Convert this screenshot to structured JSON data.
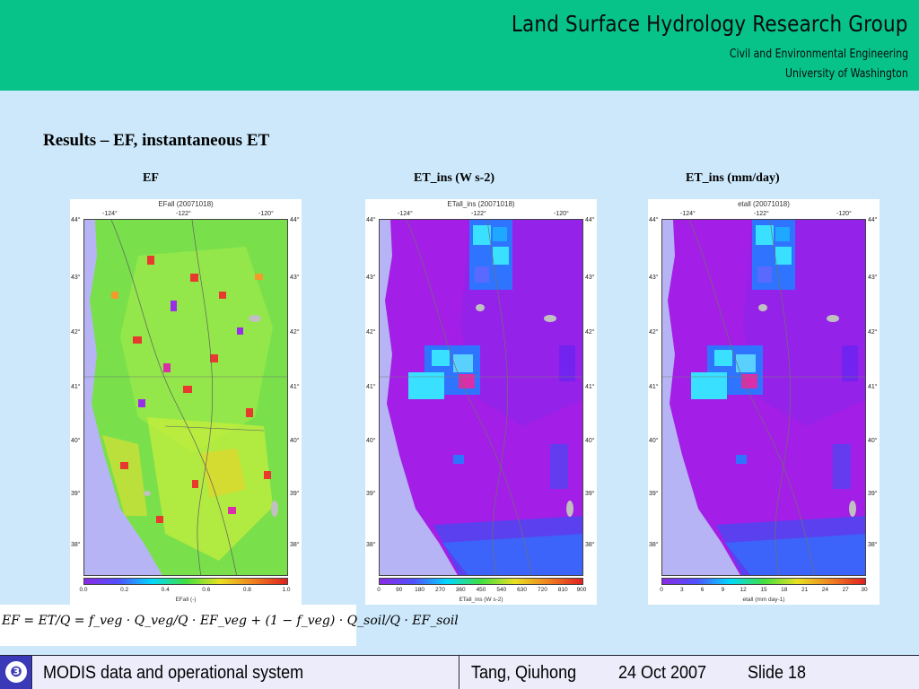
{
  "header": {
    "title": "Land Surface Hydrology Research Group",
    "department": "Civil and Environmental Engineering",
    "university": "University of Washington",
    "background_color": "#07c38a"
  },
  "slide": {
    "heading": "Results – EF, instantaneous ET",
    "background_color": "#cce8fa"
  },
  "maps": [
    {
      "label": "EF",
      "panel_title": "EFall (20071018)",
      "colorbar_label": "EFall (-)",
      "colorbar_ticks": [
        "0.0",
        "0.2",
        "0.4",
        "0.6",
        "0.8",
        "1.0"
      ],
      "colormap": "rainbow-purple-to-red",
      "dominant_colors": [
        "#6fe05a",
        "#c8f03a",
        "#f2d024",
        "#e8392e"
      ]
    },
    {
      "label": "ET_ins (W s-2)",
      "panel_title": "ETall_ins (20071018)",
      "colorbar_label": "ETall_ins (W s-2)",
      "colorbar_ticks": [
        "0",
        "90",
        "180",
        "270",
        "360",
        "450",
        "540",
        "630",
        "720",
        "810",
        "900"
      ],
      "colormap": "rainbow-purple-to-red",
      "dominant_colors": [
        "#a31ee6",
        "#6a24f0",
        "#2f74ff",
        "#39e0ff"
      ]
    },
    {
      "label": "ET_ins (mm/day)",
      "panel_title": "etall (20071018)",
      "colorbar_label": "etall (mm day-1)",
      "colorbar_ticks": [
        "0",
        "3",
        "6",
        "9",
        "12",
        "15",
        "18",
        "21",
        "24",
        "27",
        "30"
      ],
      "colormap": "rainbow-purple-to-red",
      "dominant_colors": [
        "#a31ee6",
        "#6a24f0",
        "#2f74ff",
        "#39e0ff"
      ]
    }
  ],
  "axes": {
    "longitudes": [
      "-124°",
      "-122°",
      "-120°"
    ],
    "latitudes": [
      "44°",
      "43°",
      "42°",
      "41°",
      "40°",
      "39°",
      "38°"
    ]
  },
  "formula": {
    "text": "EF = ET/Q = f_veg · Q_veg/Q · EF_veg + (1 − f_veg) · Q_soil/Q · EF_soil"
  },
  "footer": {
    "bullet": "❸",
    "title": "MODIS data and operational system",
    "author": "Tang, Qiuhong",
    "date": "24 Oct 2007",
    "slide_number": "Slide 18",
    "bullet_color": "#3a3ab8",
    "panel_color": "#ececfb"
  }
}
